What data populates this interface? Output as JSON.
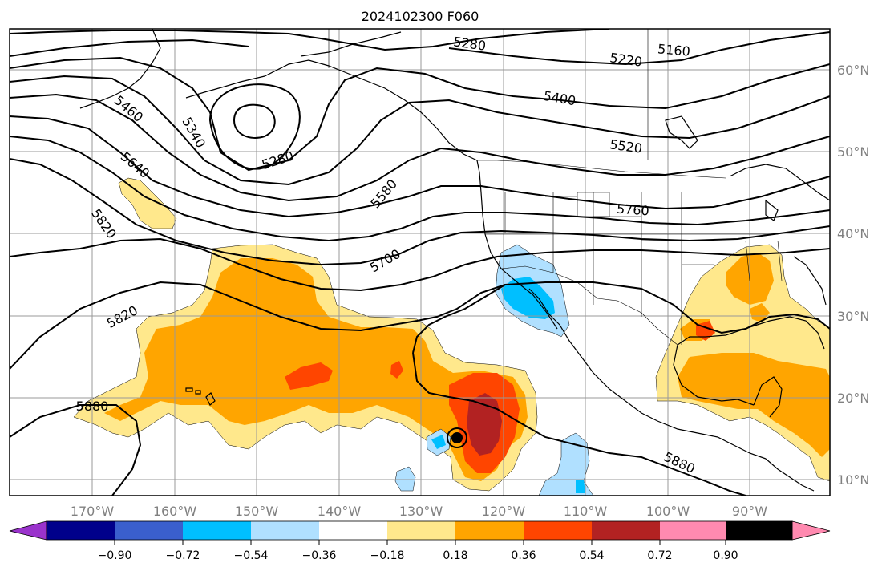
{
  "title": "2024102300 F060",
  "map": {
    "lon_labels": [
      "170°W",
      "160°W",
      "150°W",
      "140°W",
      "130°W",
      "120°W",
      "110°W",
      "100°W",
      "90°W"
    ],
    "lat_labels": [
      "10°N",
      "20°N",
      "30°N",
      "40°N",
      "50°N",
      "60°N"
    ],
    "contour_units": "gpm",
    "contour_labels": [
      "5280",
      "5160",
      "5220",
      "5400",
      "5520",
      "5760",
      "5460",
      "5340",
      "5280",
      "5640",
      "5580",
      "5820",
      "5700",
      "5820",
      "5880",
      "5880"
    ]
  },
  "colorbar": {
    "tick_labels": [
      "−0.90",
      "−0.72",
      "−0.54",
      "−0.36",
      "−0.18",
      "0.18",
      "0.36",
      "0.54",
      "0.72",
      "0.90"
    ],
    "colors": [
      "#9a33cc",
      "#00008b",
      "#3a5fcd",
      "#00bfff",
      "#b0e0ff",
      "#ffffff",
      "#ffe88c",
      "#ffa500",
      "#ff4500",
      "#b22222",
      "#ff8ab0"
    ]
  }
}
